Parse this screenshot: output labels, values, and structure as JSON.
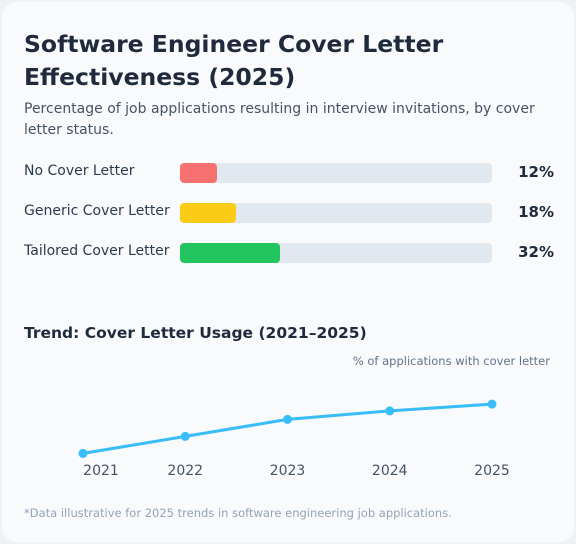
{
  "title": "Software Engineer Cover Letter Effectiveness (2025)",
  "subtitle": "Percentage of job applications resulting in interview invitations, by cover letter status.",
  "colors": {
    "no_cover": "#f87171",
    "generic": "#facc15",
    "tailored": "#22c55e",
    "trend_line": "#38bdf8",
    "track": "#e2e8f0"
  },
  "chart_data": [
    {
      "type": "bar",
      "orientation": "horizontal",
      "categories": [
        "No Cover Letter",
        "Generic Cover Letter",
        "Tailored Cover Letter"
      ],
      "values": [
        12,
        18,
        32
      ],
      "value_labels": [
        "12%",
        "18%",
        "32%"
      ],
      "xlim": [
        0,
        100
      ],
      "title": "Software Engineer Cover Letter Effectiveness (2025)"
    },
    {
      "type": "line",
      "title": "Trend: Cover Letter Usage (2021–2025)",
      "ylabel": "% of applications with cover letter",
      "x": [
        "2021",
        "2022",
        "2023",
        "2024",
        "2025"
      ],
      "values": [
        38,
        48,
        58,
        63,
        67
      ],
      "ylim": [
        30,
        80
      ]
    }
  ],
  "footnote": "*Data illustrative for 2025 trends in software engineering job applications."
}
